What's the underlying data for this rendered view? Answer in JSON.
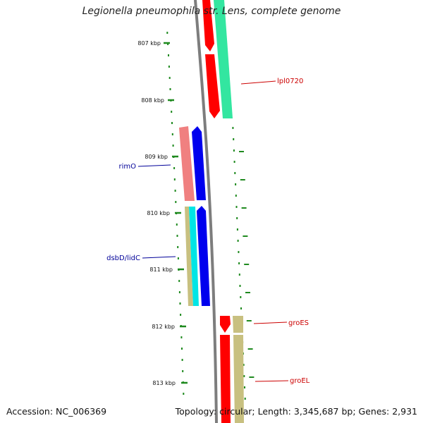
{
  "title": "Legionella pneumophila str. Lens, complete genome",
  "footer": {
    "accession": "Accession: NC_006369",
    "topology": "Topology: circular; Length: 3,345,687 bp; Genes: 2,931"
  },
  "axis": {
    "unit": "kbp",
    "ticks": [
      "807 kbp",
      "808 kbp",
      "809 kbp",
      "810 kbp",
      "811 kbp",
      "812 kbp",
      "813 kbp"
    ]
  },
  "colors": {
    "backbone": "#7d7d7d",
    "ticks": "#1f8a1f",
    "red": "#ff0000",
    "green": "#33e6a0",
    "pink": "#f08080",
    "blue": "#0000ee",
    "tan": "#c8c080",
    "cyan": "#00e5e5",
    "label_red": "#cc0000",
    "label_blue": "#000099"
  },
  "genes": [
    {
      "name": "lpl0720",
      "color": "red"
    },
    {
      "name": "rimO",
      "color": "blue"
    },
    {
      "name": "dsbD/lidC",
      "color": "blue"
    },
    {
      "name": "groES",
      "color": "red"
    },
    {
      "name": "groEL",
      "color": "red"
    }
  ]
}
